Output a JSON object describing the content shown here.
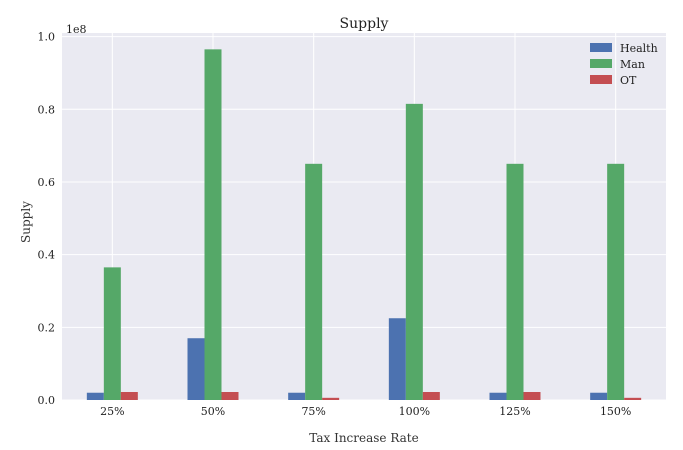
{
  "chart_data": {
    "type": "bar",
    "title": "Supply",
    "xlabel": "Tax Increase Rate",
    "ylabel": "Supply",
    "offset_text": "1e8",
    "categories": [
      "25%",
      "50%",
      "75%",
      "100%",
      "125%",
      "150%"
    ],
    "yticks": [
      "0.0",
      "0.2",
      "0.4",
      "0.6",
      "0.8",
      "1.0"
    ],
    "ylim": [
      0,
      1.01
    ],
    "y_unit_multiplier": 100000000,
    "series": [
      {
        "name": "Health",
        "color": "#4c72b0",
        "values": [
          0.02,
          0.17,
          0.02,
          0.225,
          0.02,
          0.02
        ]
      },
      {
        "name": "Man",
        "color": "#55a868",
        "values": [
          0.365,
          0.965,
          0.65,
          0.815,
          0.65,
          0.65
        ]
      },
      {
        "name": "OT",
        "color": "#c44e52",
        "values": [
          0.022,
          0.022,
          0.006,
          0.022,
          0.022,
          0.006
        ]
      }
    ],
    "grid": true,
    "legend_position": "top-right"
  }
}
